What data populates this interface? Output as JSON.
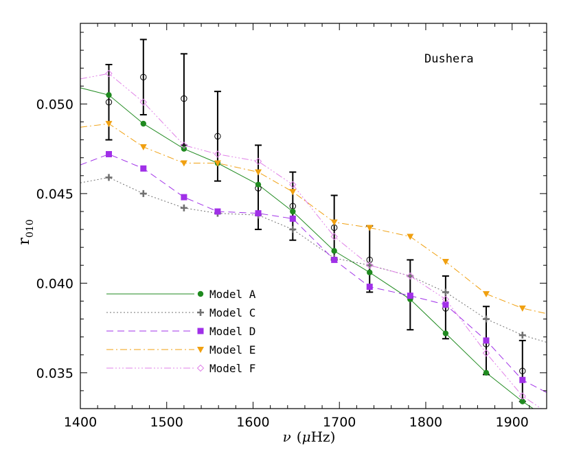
{
  "chart_data": {
    "type": "line",
    "annotation": "Dushera",
    "xlabel": {
      "symbol": "ν",
      "paren_open": "(",
      "mu": "μ",
      "unit": "Hz",
      "paren_close": ")"
    },
    "ylabel": {
      "main": "r",
      "sub": "010"
    },
    "xlim": [
      1400,
      1940
    ],
    "ylim": [
      0.033,
      0.0545
    ],
    "x_ticks": [
      1400,
      1500,
      1600,
      1700,
      1800,
      1900
    ],
    "x_tick_labels": [
      "1400",
      "1500",
      "1600",
      "1700",
      "1800",
      "1900"
    ],
    "y_ticks": [
      0.035,
      0.04,
      0.045,
      0.05
    ],
    "y_tick_labels": [
      "0.035",
      "0.040",
      "0.045",
      "0.050"
    ],
    "grid": false,
    "legend_position": "bottom-left",
    "observed": {
      "x": [
        1433,
        1473,
        1520,
        1559,
        1606,
        1646,
        1694,
        1735,
        1782,
        1823,
        1870,
        1912
      ],
      "y": [
        0.0501,
        0.0515,
        0.0503,
        0.0482,
        0.0453,
        0.0443,
        0.0431,
        0.0413,
        0.0392,
        0.0386,
        0.0366,
        0.0351
      ],
      "err_low": [
        0.048,
        0.0494,
        0.0477,
        0.0457,
        0.043,
        0.0424,
        0.0413,
        0.0395,
        0.0374,
        0.0369,
        0.0349,
        0.0334
      ],
      "err_high": [
        0.0522,
        0.0536,
        0.0528,
        0.0507,
        0.0477,
        0.0462,
        0.0449,
        0.0432,
        0.0413,
        0.0404,
        0.0387,
        0.0368
      ]
    },
    "series": [
      {
        "name": "Model A",
        "color": "#1f8a1f",
        "marker": "circle",
        "dash": "",
        "line_x": [
          1400,
          1433,
          1473,
          1520,
          1559,
          1606,
          1646,
          1694,
          1735,
          1782,
          1823,
          1870,
          1912,
          1940
        ],
        "line_y": [
          0.0509,
          0.0505,
          0.0489,
          0.0475,
          0.0467,
          0.0455,
          0.044,
          0.0418,
          0.0406,
          0.0391,
          0.0372,
          0.035,
          0.0334,
          0.0325
        ],
        "x": [
          1433,
          1473,
          1520,
          1559,
          1606,
          1646,
          1694,
          1735,
          1782,
          1823,
          1870,
          1912
        ],
        "y": [
          0.0505,
          0.0489,
          0.0475,
          0.0467,
          0.0455,
          0.044,
          0.0418,
          0.0406,
          0.0391,
          0.0372,
          0.035,
          0.0334
        ]
      },
      {
        "name": "Model C",
        "color": "#707070",
        "marker": "plus",
        "dash": "2,3",
        "line_x": [
          1400,
          1433,
          1473,
          1520,
          1559,
          1606,
          1646,
          1694,
          1735,
          1782,
          1823,
          1870,
          1912,
          1940
        ],
        "line_y": [
          0.0456,
          0.0459,
          0.045,
          0.0442,
          0.0439,
          0.0438,
          0.043,
          0.0414,
          0.041,
          0.0404,
          0.0395,
          0.038,
          0.0371,
          0.0367
        ],
        "x": [
          1433,
          1473,
          1520,
          1559,
          1606,
          1646,
          1694,
          1735,
          1782,
          1823,
          1870,
          1912
        ],
        "y": [
          0.0459,
          0.045,
          0.0442,
          0.0439,
          0.0438,
          0.043,
          0.0414,
          0.041,
          0.0404,
          0.0395,
          0.038,
          0.0371
        ]
      },
      {
        "name": "Model D",
        "color": "#a030e8",
        "marker": "square",
        "dash": "10,6",
        "line_x": [
          1400,
          1433,
          1473,
          1520,
          1559,
          1606,
          1646,
          1694,
          1735,
          1782,
          1823,
          1870,
          1912,
          1940
        ],
        "line_y": [
          0.0466,
          0.0472,
          0.0464,
          0.0448,
          0.044,
          0.0439,
          0.0436,
          0.0413,
          0.0398,
          0.0393,
          0.0388,
          0.0368,
          0.0346,
          0.0339
        ],
        "x": [
          1433,
          1473,
          1520,
          1559,
          1606,
          1646,
          1694,
          1735,
          1782,
          1823,
          1870,
          1912
        ],
        "y": [
          0.0472,
          0.0464,
          0.0448,
          0.044,
          0.0439,
          0.0436,
          0.0413,
          0.0398,
          0.0393,
          0.0388,
          0.0368,
          0.0346
        ]
      },
      {
        "name": "Model E",
        "color": "#f0a010",
        "marker": "triangle-down",
        "dash": "10,4,2,4",
        "line_x": [
          1400,
          1433,
          1473,
          1520,
          1559,
          1606,
          1646,
          1694,
          1735,
          1782,
          1823,
          1870,
          1912,
          1940
        ],
        "line_y": [
          0.0487,
          0.0489,
          0.0476,
          0.0467,
          0.0467,
          0.0462,
          0.0451,
          0.0434,
          0.0431,
          0.0426,
          0.0412,
          0.0394,
          0.0386,
          0.0383
        ],
        "x": [
          1433,
          1473,
          1520,
          1559,
          1606,
          1646,
          1694,
          1735,
          1782,
          1823,
          1870,
          1912
        ],
        "y": [
          0.0489,
          0.0476,
          0.0467,
          0.0467,
          0.0462,
          0.0451,
          0.0434,
          0.0431,
          0.0426,
          0.0412,
          0.0394,
          0.0386
        ]
      },
      {
        "name": "Model F",
        "color": "#e080e8",
        "marker": "diamond-open",
        "dash": "10,3,2,3,2,3,2,3",
        "line_x": [
          1400,
          1433,
          1473,
          1520,
          1559,
          1606,
          1646,
          1694,
          1735,
          1782,
          1823,
          1870,
          1912,
          1940
        ],
        "line_y": [
          0.0514,
          0.0517,
          0.0501,
          0.0477,
          0.0472,
          0.0468,
          0.0455,
          0.0426,
          0.041,
          0.0404,
          0.0391,
          0.0361,
          0.0337,
          0.0328
        ],
        "x": [
          1433,
          1473,
          1520,
          1559,
          1606,
          1646,
          1694,
          1735,
          1782,
          1823,
          1870,
          1912
        ],
        "y": [
          0.0517,
          0.0501,
          0.0477,
          0.0472,
          0.0468,
          0.0455,
          0.0426,
          0.041,
          0.0404,
          0.0391,
          0.0361,
          0.0337
        ]
      }
    ]
  }
}
